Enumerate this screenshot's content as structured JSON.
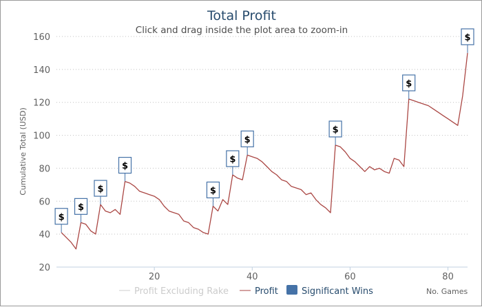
{
  "chart_data": {
    "type": "line",
    "title": "Total Profit",
    "subtitle": "Click and drag inside the plot area to zoom-in",
    "ylabel": "Cumulative Total (USD)",
    "xlabel": "No. Games",
    "ylim": [
      20,
      160
    ],
    "xlim": [
      0,
      84
    ],
    "y_ticks": [
      20,
      40,
      60,
      80,
      100,
      120,
      140,
      160
    ],
    "x_ticks": [
      20,
      40,
      60,
      80
    ],
    "grid": "horizontal-dotted",
    "legend": {
      "placement": "bottom",
      "items": [
        {
          "label": "Profit Excluding Rake",
          "color": "#cccccc",
          "enabled": false
        },
        {
          "label": "Profit",
          "color": "#aa4643",
          "enabled": true
        },
        {
          "label": "Significant Wins",
          "color": "#4572a7",
          "enabled": true
        }
      ]
    },
    "series": [
      {
        "name": "Profit",
        "color": "#aa4643",
        "x": [
          1,
          2,
          3,
          4,
          5,
          6,
          7,
          8,
          9,
          10,
          11,
          12,
          13,
          14,
          15,
          16,
          17,
          18,
          19,
          20,
          21,
          22,
          23,
          24,
          25,
          26,
          27,
          28,
          29,
          30,
          31,
          32,
          33,
          34,
          35,
          36,
          37,
          38,
          39,
          40,
          41,
          42,
          43,
          44,
          45,
          46,
          47,
          48,
          49,
          50,
          51,
          52,
          53,
          54,
          55,
          56,
          57,
          58,
          59,
          60,
          61,
          62,
          63,
          64,
          65,
          66,
          67,
          68,
          69,
          70,
          71,
          72,
          73,
          74,
          75,
          76,
          77,
          78,
          79,
          80,
          81,
          82,
          83,
          84
        ],
        "y": [
          41,
          38,
          35,
          31,
          47,
          46,
          42,
          40,
          58,
          54,
          53,
          55,
          52,
          72,
          71,
          69,
          66,
          65,
          64,
          63,
          61,
          57,
          54,
          53,
          52,
          48,
          47,
          44,
          43,
          41,
          40,
          57,
          54,
          61,
          58,
          76,
          74,
          73,
          88,
          87,
          86,
          84,
          81,
          78,
          76,
          73,
          72,
          69,
          68,
          67,
          64,
          65,
          61,
          58,
          56,
          53,
          94,
          93,
          90,
          86,
          84,
          81,
          78,
          81,
          79,
          80,
          78,
          77,
          86,
          85,
          81,
          122,
          121,
          120,
          119,
          118,
          116,
          114,
          112,
          110,
          108,
          106,
          124,
          150
        ]
      }
    ],
    "significant_wins": {
      "name": "Significant Wins",
      "flag_label": "$",
      "x": [
        1,
        5,
        9,
        14,
        32,
        36,
        39,
        57,
        72,
        84
      ],
      "y": [
        41,
        47,
        58,
        72,
        57,
        76,
        88,
        94,
        122,
        150
      ]
    }
  }
}
